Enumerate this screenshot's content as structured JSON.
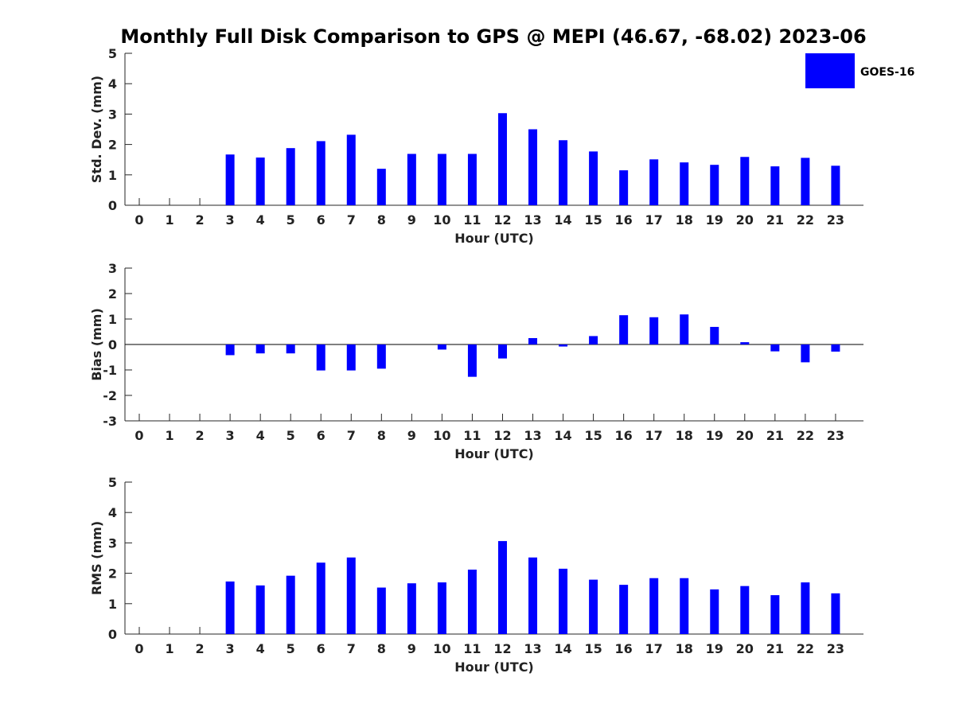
{
  "title": "Monthly Full Disk Comparison to GPS @ MEPI (46.67, -68.02) 2023-06",
  "legend": {
    "label": "GOES-16",
    "color": "#0000ff",
    "placement": "top-right"
  },
  "chart_data": [
    {
      "type": "bar",
      "title": "",
      "xlabel": "Hour (UTC)",
      "ylabel": "Std. Dev. (mm)",
      "ylim": [
        0,
        5
      ],
      "yticks": [
        0,
        1,
        2,
        3,
        4,
        5
      ],
      "categories": [
        "0",
        "1",
        "2",
        "3",
        "4",
        "5",
        "6",
        "7",
        "8",
        "9",
        "10",
        "11",
        "12",
        "13",
        "14",
        "15",
        "16",
        "17",
        "18",
        "19",
        "20",
        "21",
        "22",
        "23"
      ],
      "series": [
        {
          "name": "GOES-16",
          "color": "#0000ff",
          "values": [
            null,
            null,
            null,
            1.67,
            1.57,
            1.88,
            2.11,
            2.32,
            1.2,
            1.69,
            1.69,
            1.69,
            3.03,
            2.5,
            2.14,
            1.77,
            1.15,
            1.51,
            1.41,
            1.33,
            1.59,
            1.28,
            1.56,
            1.3
          ]
        }
      ]
    },
    {
      "type": "bar",
      "title": "",
      "xlabel": "Hour (UTC)",
      "ylabel": "Bias (mm)",
      "ylim": [
        -3,
        3
      ],
      "yticks": [
        -3,
        -2,
        -1,
        0,
        1,
        2,
        3
      ],
      "categories": [
        "0",
        "1",
        "2",
        "3",
        "4",
        "5",
        "6",
        "7",
        "8",
        "9",
        "10",
        "11",
        "12",
        "13",
        "14",
        "15",
        "16",
        "17",
        "18",
        "19",
        "20",
        "21",
        "22",
        "23"
      ],
      "series": [
        {
          "name": "GOES-16",
          "color": "#0000ff",
          "values": [
            null,
            null,
            null,
            -0.42,
            -0.35,
            -0.35,
            -1.02,
            -1.02,
            -0.95,
            0.0,
            -0.2,
            -1.27,
            -0.55,
            0.25,
            -0.08,
            0.33,
            1.15,
            1.07,
            1.18,
            0.69,
            0.09,
            -0.27,
            -0.7,
            -0.28
          ]
        }
      ]
    },
    {
      "type": "bar",
      "title": "",
      "xlabel": "Hour (UTC)",
      "ylabel": "RMS (mm)",
      "ylim": [
        0,
        5
      ],
      "yticks": [
        0,
        1,
        2,
        3,
        4,
        5
      ],
      "categories": [
        "0",
        "1",
        "2",
        "3",
        "4",
        "5",
        "6",
        "7",
        "8",
        "9",
        "10",
        "11",
        "12",
        "13",
        "14",
        "15",
        "16",
        "17",
        "18",
        "19",
        "20",
        "21",
        "22",
        "23"
      ],
      "series": [
        {
          "name": "GOES-16",
          "color": "#0000ff",
          "values": [
            null,
            null,
            null,
            1.73,
            1.6,
            1.92,
            2.35,
            2.52,
            1.53,
            1.67,
            1.7,
            2.12,
            3.06,
            2.52,
            2.15,
            1.79,
            1.62,
            1.84,
            1.84,
            1.47,
            1.58,
            1.28,
            1.7,
            1.34
          ]
        }
      ]
    }
  ]
}
